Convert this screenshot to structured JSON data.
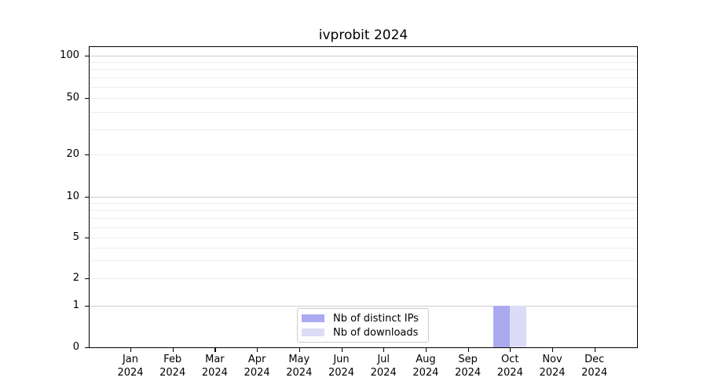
{
  "chart_data": {
    "type": "bar",
    "title": "ivprobit 2024",
    "x_tick_labels": [
      {
        "month": "Jan",
        "year": "2024"
      },
      {
        "month": "Feb",
        "year": "2024"
      },
      {
        "month": "Mar",
        "year": "2024"
      },
      {
        "month": "Apr",
        "year": "2024"
      },
      {
        "month": "May",
        "year": "2024"
      },
      {
        "month": "Jun",
        "year": "2024"
      },
      {
        "month": "Jul",
        "year": "2024"
      },
      {
        "month": "Aug",
        "year": "2024"
      },
      {
        "month": "Sep",
        "year": "2024"
      },
      {
        "month": "Oct",
        "year": "2024"
      },
      {
        "month": "Nov",
        "year": "2024"
      },
      {
        "month": "Dec",
        "year": "2024"
      }
    ],
    "series": [
      {
        "name": "Nb of distinct IPs",
        "color": "#aaaaf0",
        "values": [
          0,
          0,
          0,
          0,
          0,
          0,
          0,
          0,
          0,
          1,
          0,
          0
        ]
      },
      {
        "name": "Nb of downloads",
        "color": "#dcdcf6",
        "values": [
          0,
          0,
          0,
          0,
          0,
          0,
          0,
          0,
          0,
          1,
          0,
          0
        ]
      }
    ],
    "yscale": "log1p",
    "ylim": [
      0,
      115
    ],
    "y_tick_values": [
      0,
      1,
      2,
      5,
      10,
      20,
      50,
      100
    ],
    "y_major_gridlines": [
      1,
      10,
      100
    ],
    "y_minor_gridlines": [
      2,
      3,
      4,
      5,
      6,
      7,
      8,
      9,
      20,
      30,
      40,
      50,
      60,
      70,
      80,
      90
    ],
    "legend": {
      "position": "lower center"
    },
    "colors": {
      "major_grid": "#cccccc",
      "minor_grid": "#eeeeee",
      "axis": "#000000",
      "background": "#ffffff",
      "legend_border": "#cccccc"
    }
  }
}
